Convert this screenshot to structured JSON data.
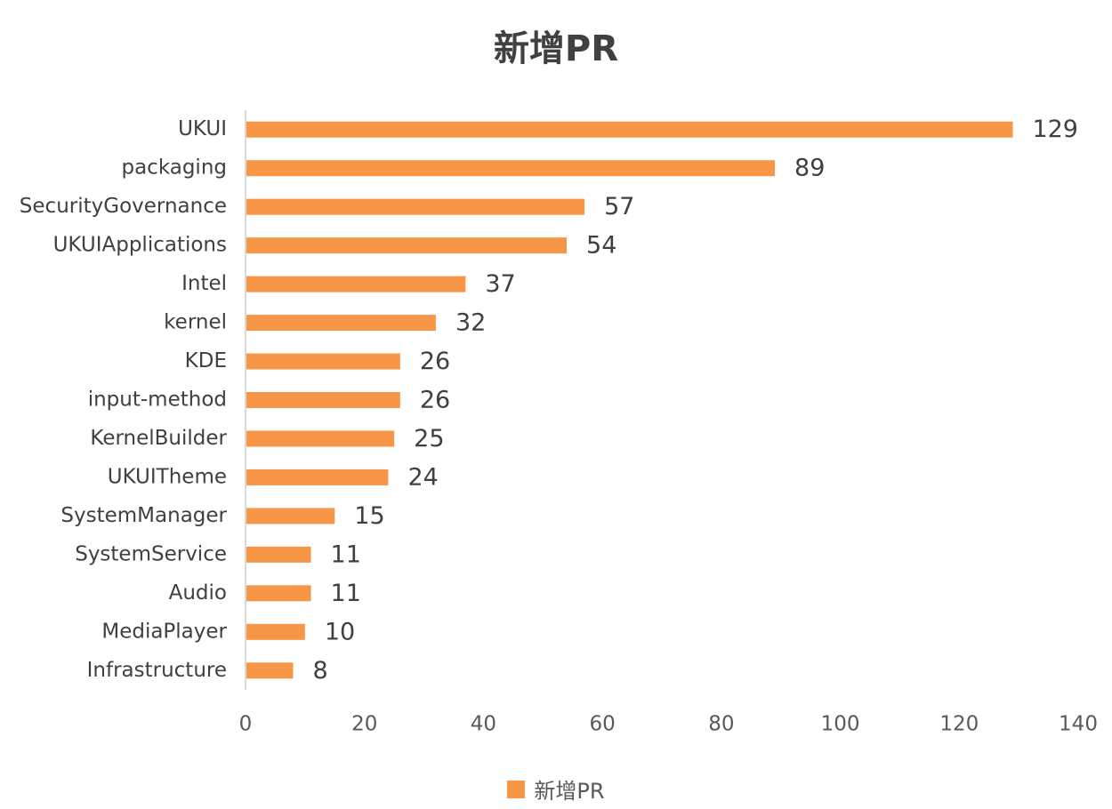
{
  "chart_data": {
    "type": "bar",
    "orientation": "horizontal",
    "title": "新增PR",
    "categories": [
      "UKUI",
      "packaging",
      "SecurityGovernance",
      "UKUIApplications",
      "Intel",
      "kernel",
      "KDE",
      "input-method",
      "KernelBuilder",
      "UKUITheme",
      "SystemManager",
      "SystemService",
      "Audio",
      "MediaPlayer",
      "Infrastructure"
    ],
    "series": [
      {
        "name": "新增PR",
        "values": [
          129,
          89,
          57,
          54,
          37,
          32,
          26,
          26,
          25,
          24,
          15,
          11,
          11,
          10,
          8
        ],
        "color": "#F79646"
      }
    ],
    "xlim": [
      0,
      140
    ],
    "xticks": [
      0,
      20,
      40,
      60,
      80,
      100,
      120,
      140
    ],
    "grid": false,
    "legend": "bottom",
    "data_labels": true
  }
}
